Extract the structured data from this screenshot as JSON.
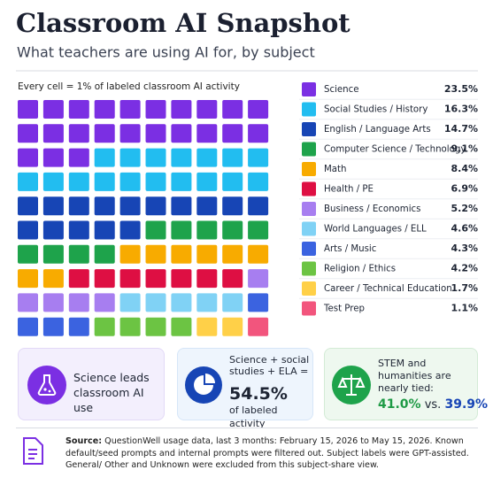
{
  "chart_data": {
    "type": "waffle",
    "title": "Classroom AI Snapshot",
    "subtitle": "What teachers are using AI for, by subject",
    "note": "Every cell = 1% of labeled classroom AI activity",
    "categories": [
      "Science",
      "Social Studies / History",
      "English / Language Arts",
      "Computer Science / Technology",
      "Math",
      "Health / PE",
      "Business / Economics",
      "World Languages / ELL",
      "Arts / Music",
      "Religion / Ethics",
      "Career / Technical Education",
      "Test Prep"
    ],
    "values": [
      23.5,
      16.3,
      14.7,
      9.1,
      8.4,
      6.9,
      5.2,
      4.6,
      4.3,
      4.2,
      1.7,
      1.1
    ],
    "value_labels": [
      "23.5%",
      "16.3%",
      "14.7%",
      "9.1%",
      "8.4%",
      "6.9%",
      "5.2%",
      "4.6%",
      "4.3%",
      "4.2%",
      "1.7%",
      "1.1%"
    ],
    "colors": [
      "#7b2fe3",
      "#22bdf0",
      "#1745b5",
      "#1ea34b",
      "#f8ab00",
      "#de0f43",
      "#a77ef0",
      "#80d2f5",
      "#3b63e0",
      "#6cc443",
      "#ffd048",
      "#f2557d"
    ],
    "grid_rows": 10,
    "grid_cols": 10
  },
  "cards": [
    {
      "text": "Science leads classroom AI use"
    },
    {
      "text": "Science + social studies + ELA =",
      "value": "54.5%",
      "suffix": "of labeled activity"
    },
    {
      "text": "STEM and humanities are nearly tied:",
      "left": "41.0%",
      "vs": "vs.",
      "right": "39.9%"
    }
  ],
  "source": {
    "label": "Source:",
    "text": "QuestionWell usage data, last 3 months: February 15, 2026 to May 15, 2026. Known default/seed prompts and internal prompts were filtered out. Subject labels were GPT-assisted. General/ Other and Unknown were excluded from this subject-share view."
  }
}
